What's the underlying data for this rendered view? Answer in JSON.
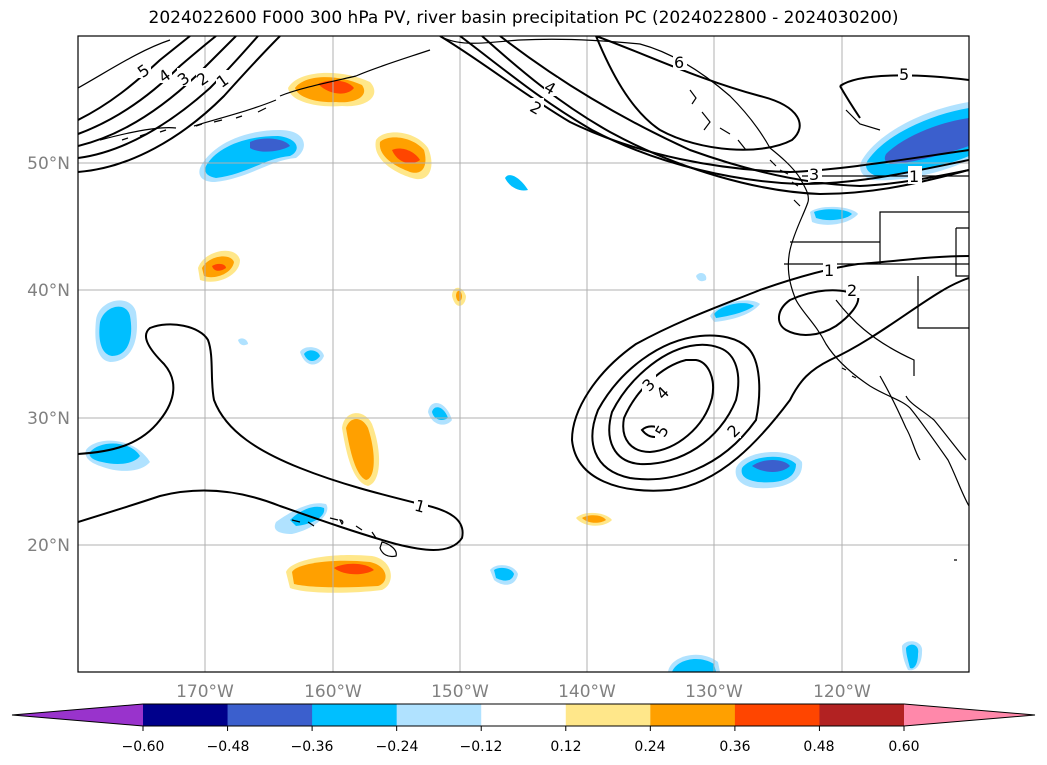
{
  "title": "2024022600 F000 300 hPa PV, river basin precipitation PC (2024022800 - 2024030200)",
  "map": {
    "lon_range": [
      180,
      110
    ],
    "lat_range": [
      10,
      60
    ],
    "lon_ticks": [
      "170°W",
      "160°W",
      "150°W",
      "140°W",
      "130°W",
      "120°W"
    ],
    "lat_ticks": [
      "50°N",
      "40°N",
      "30°N",
      "20°N"
    ],
    "gridlines": true
  },
  "contour_labels": [
    "5",
    "4",
    "3",
    "2",
    "1",
    "6",
    "4",
    "2",
    "3",
    "5",
    "1",
    "2",
    "1",
    "3",
    "4",
    "5",
    "2"
  ],
  "colorbar": {
    "ticks": [
      "−0.60",
      "−0.48",
      "−0.36",
      "−0.24",
      "−0.12",
      "0.12",
      "0.24",
      "0.36",
      "0.48",
      "0.60"
    ],
    "colors": [
      "#9933cc",
      "#00008b",
      "#3b5fcd",
      "#00bfff",
      "#b0e2ff",
      "#ffffff",
      "#ffe78a",
      "#ffa000",
      "#ff4500",
      "#b22222",
      "#ff88aa"
    ],
    "extend": "both"
  }
}
